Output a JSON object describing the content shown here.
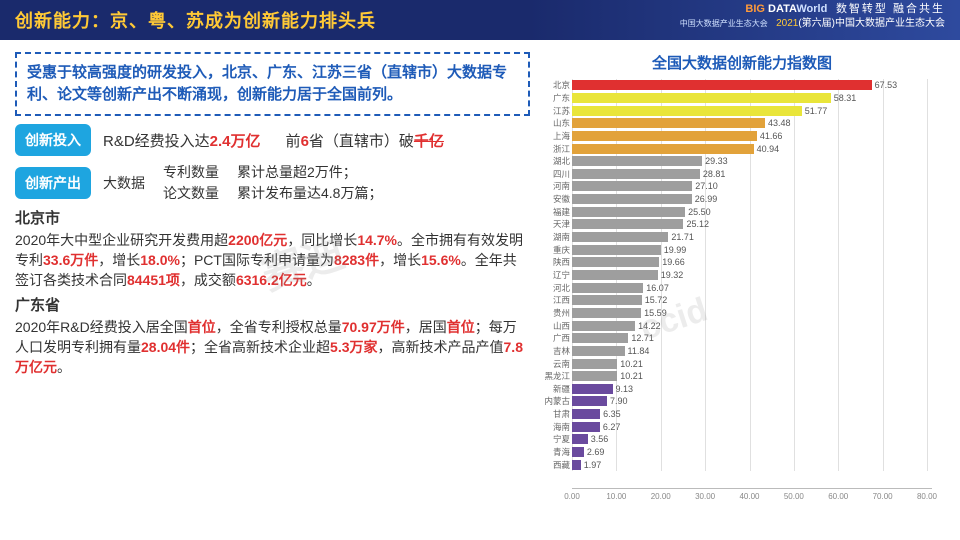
{
  "header": {
    "title": "创新能力：京、粤、苏成为创新能力排头兵",
    "logo_main": "BIG DATA World",
    "logo_sub": "中国大数据产业生态大会",
    "slogan": "数智转型  融合共生",
    "conf_year": "2021",
    "conf_rest": "(第六届)中国大数据产业生态大会"
  },
  "summary": "受惠于较高强度的研发投入，北京、广东、江苏三省（直辖市）大数据专利、论文等创新产出不断涌现，创新能力居于全国前列。",
  "input_row": {
    "pill": "创新投入",
    "text_prefix": "R&D经费投入达",
    "text_hl1": "2.4万亿",
    "text_mid": "前",
    "text_hl2": "6",
    "text_after": "省（直辖市）破",
    "text_hl3": "千亿"
  },
  "output_row": {
    "pill": "创新产出",
    "col1": "大数据",
    "col2_a": "专利数量",
    "col2_b": "论文数量",
    "col3_a": "累计总量超2万件；",
    "col3_b": "累计发布量达4.8万篇；"
  },
  "regions": [
    {
      "title": "北京市",
      "body": "2020年大中型企业研究开发费用超<b>2200亿元</b>，同比增长<b>14.7%</b>。全市拥有有效发明专利<b>33.6万件</b>，增长<b>18.0%</b>；PCT国际专利申请量为<b>8283件</b>，增长<b>15.6%</b>。全年共签订各类技术合同<b>84451项</b>，成交额<b>6316.2亿元</b>。"
    },
    {
      "title": "广东省",
      "body": "2020年R&D经费投入居全国<b>首位</b>，全省专利授权总量<b>70.97万件</b>，居国<b>首位</b>；每万人口发明专利拥有量<b>28.04件</b>；全省高新技术企业超<b>5.3万家</b>，高新技术产品产值<b>7.8万亿元</b>。"
    }
  ],
  "chart": {
    "title": "全国大数据创新能力指数图",
    "xmax": 80,
    "xtick_step": 10,
    "xticks": [
      "0.00",
      "10.00",
      "20.00",
      "30.00",
      "40.00",
      "50.00",
      "60.00",
      "70.00",
      "80.00"
    ],
    "grid_color": "#e0e0e0",
    "bars": [
      {
        "label": "北京",
        "value": 67.53,
        "color": "#e03030"
      },
      {
        "label": "广东",
        "value": 58.31,
        "color": "#e9e53a"
      },
      {
        "label": "江苏",
        "value": 51.77,
        "color": "#e9e53a"
      },
      {
        "label": "山东",
        "value": 43.48,
        "color": "#e2a23a"
      },
      {
        "label": "上海",
        "value": 41.66,
        "color": "#e2a23a"
      },
      {
        "label": "浙江",
        "value": 40.94,
        "color": "#e2a23a"
      },
      {
        "label": "湖北",
        "value": 29.33,
        "color": "#9e9e9e"
      },
      {
        "label": "四川",
        "value": 28.81,
        "color": "#9e9e9e"
      },
      {
        "label": "河南",
        "value": 27.1,
        "color": "#9e9e9e"
      },
      {
        "label": "安徽",
        "value": 26.99,
        "color": "#9e9e9e"
      },
      {
        "label": "福建",
        "value": 25.5,
        "color": "#9e9e9e"
      },
      {
        "label": "天津",
        "value": 25.12,
        "color": "#9e9e9e"
      },
      {
        "label": "湖南",
        "value": 21.71,
        "color": "#9e9e9e"
      },
      {
        "label": "重庆",
        "value": 19.99,
        "color": "#9e9e9e"
      },
      {
        "label": "陕西",
        "value": 19.66,
        "color": "#9e9e9e"
      },
      {
        "label": "辽宁",
        "value": 19.32,
        "color": "#9e9e9e"
      },
      {
        "label": "河北",
        "value": 16.07,
        "color": "#9e9e9e"
      },
      {
        "label": "江西",
        "value": 15.72,
        "color": "#9e9e9e"
      },
      {
        "label": "贵州",
        "value": 15.59,
        "color": "#9e9e9e"
      },
      {
        "label": "山西",
        "value": 14.22,
        "color": "#9e9e9e"
      },
      {
        "label": "广西",
        "value": 12.71,
        "color": "#9e9e9e"
      },
      {
        "label": "吉林",
        "value": 11.84,
        "color": "#9e9e9e"
      },
      {
        "label": "云南",
        "value": 10.21,
        "color": "#9e9e9e"
      },
      {
        "label": "黑龙江",
        "value": 10.21,
        "color": "#9e9e9e"
      },
      {
        "label": "新疆",
        "value": 9.13,
        "color": "#6a4a9e"
      },
      {
        "label": "内蒙古",
        "value": 7.9,
        "color": "#6a4a9e"
      },
      {
        "label": "甘肃",
        "value": 6.35,
        "color": "#6a4a9e"
      },
      {
        "label": "海南",
        "value": 6.27,
        "color": "#6a4a9e"
      },
      {
        "label": "宁夏",
        "value": 3.56,
        "color": "#6a4a9e"
      },
      {
        "label": "青海",
        "value": 2.69,
        "color": "#6a4a9e"
      },
      {
        "label": "西藏",
        "value": 1.97,
        "color": "#6a4a9e"
      }
    ]
  },
  "watermarks": [
    "赛迪",
    "ccid"
  ]
}
